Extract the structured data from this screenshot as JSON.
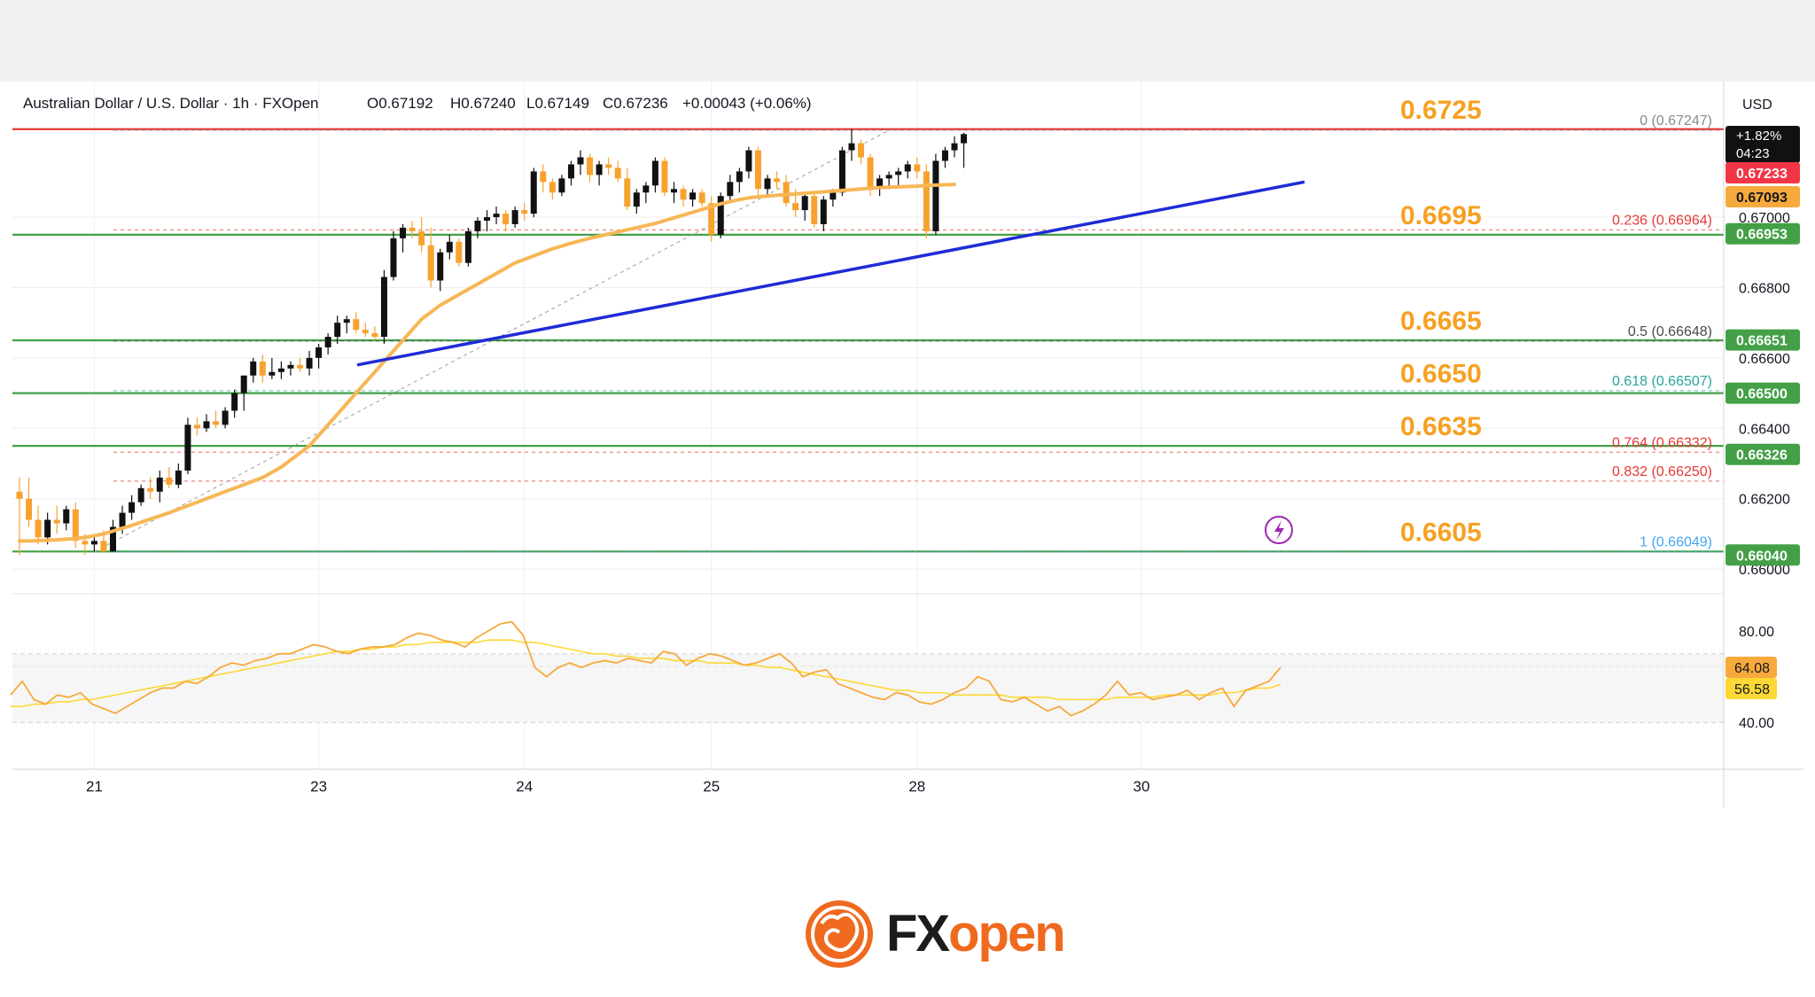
{
  "chart_data": {
    "type": "candlestick",
    "header": {
      "symbol": "Australian Dollar / U.S. Dollar · 1h · FXOpen",
      "open": "O0.67192",
      "high": "H0.67240",
      "low": "L0.67149",
      "close": "C0.67236",
      "change": "+0.00043 (+0.06%)"
    },
    "currency": "USD",
    "price_axis": {
      "ylim": [
        0.6595,
        0.6733
      ],
      "ticks": [
        {
          "value": 0.668,
          "label": "0.66800"
        },
        {
          "value": 0.666,
          "label": "0.66600"
        },
        {
          "value": 0.664,
          "label": "0.66400"
        },
        {
          "value": 0.662,
          "label": "0.66200"
        },
        {
          "value": 0.66,
          "label": "0.66000"
        },
        {
          "value": 0.67,
          "label": "0.67000"
        }
      ]
    },
    "price_tags": [
      {
        "value": 0.67236,
        "label": "+1.82%",
        "color": "#111111",
        "countdown": "04:23"
      },
      {
        "value": 0.67233,
        "label": "0.67233",
        "color": "#f23645"
      },
      {
        "value": 0.67093,
        "label": "0.67093",
        "color": "#f7a93b"
      },
      {
        "value": 0.66953,
        "label": "0.66953",
        "color": "#43a047"
      },
      {
        "value": 0.66651,
        "label": "0.66651",
        "color": "#43a047"
      },
      {
        "value": 0.665,
        "label": "0.66500",
        "color": "#43a047"
      },
      {
        "value": 0.66326,
        "label": "0.66326",
        "color": "#43a047"
      },
      {
        "value": 0.6604,
        "label": "0.66040",
        "color": "#43a047"
      }
    ],
    "levels": [
      {
        "value": 0.6725,
        "label": "0.6725",
        "color": "#e53935"
      },
      {
        "value": 0.6695,
        "label": "0.6695",
        "color": "#43a047"
      },
      {
        "value": 0.6665,
        "label": "0.6665",
        "color": "#43a047"
      },
      {
        "value": 0.665,
        "label": "0.6650",
        "color": "#43a047"
      },
      {
        "value": 0.6635,
        "label": "0.6635",
        "color": "#43a047"
      },
      {
        "value": 0.6605,
        "label": "0.6605",
        "color": "#43a047"
      }
    ],
    "fib_levels": [
      {
        "value": 0.67247,
        "label": "0 (0.67247)",
        "color": "#8a8a8a"
      },
      {
        "value": 0.66964,
        "label": "0.236 (0.66964)",
        "color": "#e53935"
      },
      {
        "value": 0.66648,
        "label": "0.5 (0.66648)",
        "color": "#4a4a4a"
      },
      {
        "value": 0.66507,
        "label": "0.618 (0.66507)",
        "color": "#26a69a"
      },
      {
        "value": 0.66332,
        "label": "0.764 (0.66332)",
        "color": "#e53935"
      },
      {
        "value": 0.6625,
        "label": "0.832 (0.66250)",
        "color": "#e53935"
      },
      {
        "value": 0.66049,
        "label": "1 (0.66049)",
        "color": "#42a5f5"
      }
    ],
    "x_ticks": [
      {
        "index": 8,
        "label": "21"
      },
      {
        "index": 32,
        "label": "23"
      },
      {
        "index": 54,
        "label": "24"
      },
      {
        "index": 74,
        "label": "25"
      },
      {
        "index": 96,
        "label": "28"
      },
      {
        "index": 120,
        "label": "30"
      }
    ],
    "ohlc": [
      [
        0.6622,
        0.6626,
        0.6604,
        0.662
      ],
      [
        0.662,
        0.6626,
        0.6612,
        0.6614
      ],
      [
        0.6614,
        0.6618,
        0.6607,
        0.6609
      ],
      [
        0.6609,
        0.6616,
        0.6607,
        0.6614
      ],
      [
        0.6614,
        0.6618,
        0.661,
        0.6613
      ],
      [
        0.6613,
        0.6618,
        0.6611,
        0.6617
      ],
      [
        0.6617,
        0.6619,
        0.6606,
        0.6608
      ],
      [
        0.6608,
        0.661,
        0.6604,
        0.6607
      ],
      [
        0.6607,
        0.6609,
        0.6605,
        0.6608
      ],
      [
        0.6608,
        0.6611,
        0.6605,
        0.6605
      ],
      [
        0.6605,
        0.6614,
        0.6605,
        0.6612
      ],
      [
        0.6612,
        0.6618,
        0.661,
        0.6616
      ],
      [
        0.6616,
        0.6621,
        0.6614,
        0.6619
      ],
      [
        0.6619,
        0.6624,
        0.6618,
        0.6623
      ],
      [
        0.6623,
        0.6626,
        0.662,
        0.6622
      ],
      [
        0.6622,
        0.6628,
        0.6619,
        0.6626
      ],
      [
        0.6626,
        0.6629,
        0.6623,
        0.6624
      ],
      [
        0.6624,
        0.663,
        0.6623,
        0.6628
      ],
      [
        0.6628,
        0.6643,
        0.6627,
        0.6641
      ],
      [
        0.6641,
        0.6643,
        0.6638,
        0.664
      ],
      [
        0.664,
        0.6644,
        0.6639,
        0.6642
      ],
      [
        0.6642,
        0.6645,
        0.664,
        0.6641
      ],
      [
        0.6641,
        0.6646,
        0.664,
        0.6645
      ],
      [
        0.6645,
        0.6651,
        0.6643,
        0.665
      ],
      [
        0.665,
        0.6655,
        0.6645,
        0.6655
      ],
      [
        0.6655,
        0.666,
        0.6653,
        0.6659
      ],
      [
        0.6659,
        0.6661,
        0.6653,
        0.6655
      ],
      [
        0.6655,
        0.666,
        0.6654,
        0.6656
      ],
      [
        0.6656,
        0.6659,
        0.6654,
        0.6657
      ],
      [
        0.6657,
        0.6659,
        0.6655,
        0.6658
      ],
      [
        0.6658,
        0.666,
        0.6656,
        0.6657
      ],
      [
        0.6657,
        0.6662,
        0.6655,
        0.666
      ],
      [
        0.666,
        0.6664,
        0.6657,
        0.6663
      ],
      [
        0.6663,
        0.6667,
        0.6661,
        0.6666
      ],
      [
        0.6666,
        0.6672,
        0.6664,
        0.667
      ],
      [
        0.667,
        0.6672,
        0.6667,
        0.6671
      ],
      [
        0.6671,
        0.6673,
        0.6667,
        0.6668
      ],
      [
        0.6668,
        0.667,
        0.6666,
        0.6667
      ],
      [
        0.6667,
        0.6669,
        0.6665,
        0.6666
      ],
      [
        0.6666,
        0.6685,
        0.6664,
        0.6683
      ],
      [
        0.6683,
        0.6696,
        0.6682,
        0.6694
      ],
      [
        0.6694,
        0.6698,
        0.669,
        0.6697
      ],
      [
        0.6697,
        0.6699,
        0.6694,
        0.6696
      ],
      [
        0.6696,
        0.67,
        0.669,
        0.6692
      ],
      [
        0.6692,
        0.6697,
        0.668,
        0.6682
      ],
      [
        0.6682,
        0.6691,
        0.6679,
        0.669
      ],
      [
        0.669,
        0.6695,
        0.6688,
        0.6693
      ],
      [
        0.6693,
        0.6694,
        0.6686,
        0.6687
      ],
      [
        0.6687,
        0.6697,
        0.6686,
        0.6696
      ],
      [
        0.6696,
        0.67,
        0.6694,
        0.6699
      ],
      [
        0.6699,
        0.6702,
        0.6696,
        0.67
      ],
      [
        0.67,
        0.6703,
        0.6698,
        0.6701
      ],
      [
        0.6701,
        0.6702,
        0.6696,
        0.6698
      ],
      [
        0.6698,
        0.6703,
        0.6697,
        0.6702
      ],
      [
        0.6702,
        0.6704,
        0.6699,
        0.6701
      ],
      [
        0.6701,
        0.6714,
        0.67,
        0.6713
      ],
      [
        0.6713,
        0.6715,
        0.6707,
        0.671
      ],
      [
        0.671,
        0.6711,
        0.6705,
        0.6707
      ],
      [
        0.6707,
        0.6712,
        0.6706,
        0.6711
      ],
      [
        0.6711,
        0.6716,
        0.6709,
        0.6715
      ],
      [
        0.6715,
        0.6719,
        0.6712,
        0.6717
      ],
      [
        0.6717,
        0.6718,
        0.671,
        0.6712
      ],
      [
        0.6712,
        0.6716,
        0.6709,
        0.6715
      ],
      [
        0.6715,
        0.6717,
        0.6712,
        0.6714
      ],
      [
        0.6714,
        0.6716,
        0.671,
        0.6711
      ],
      [
        0.6711,
        0.6714,
        0.6702,
        0.6703
      ],
      [
        0.6703,
        0.6708,
        0.6701,
        0.6707
      ],
      [
        0.6707,
        0.671,
        0.6704,
        0.6709
      ],
      [
        0.6709,
        0.6717,
        0.6707,
        0.6716
      ],
      [
        0.6716,
        0.6717,
        0.6706,
        0.6707
      ],
      [
        0.6707,
        0.671,
        0.6704,
        0.6708
      ],
      [
        0.6708,
        0.6709,
        0.6703,
        0.6705
      ],
      [
        0.6705,
        0.6708,
        0.6703,
        0.6707
      ],
      [
        0.6707,
        0.6708,
        0.6703,
        0.6704
      ],
      [
        0.6704,
        0.6706,
        0.6693,
        0.6695
      ],
      [
        0.6695,
        0.6707,
        0.6694,
        0.6706
      ],
      [
        0.6706,
        0.6712,
        0.6704,
        0.671
      ],
      [
        0.671,
        0.6714,
        0.6707,
        0.6713
      ],
      [
        0.6713,
        0.672,
        0.6711,
        0.6719
      ],
      [
        0.6719,
        0.672,
        0.6706,
        0.6708
      ],
      [
        0.6708,
        0.6712,
        0.6706,
        0.6711
      ],
      [
        0.6711,
        0.6713,
        0.6708,
        0.671
      ],
      [
        0.671,
        0.6712,
        0.6703,
        0.6704
      ],
      [
        0.6704,
        0.6708,
        0.67,
        0.6702
      ],
      [
        0.6702,
        0.6707,
        0.6699,
        0.6706
      ],
      [
        0.6706,
        0.6707,
        0.6697,
        0.6698
      ],
      [
        0.6698,
        0.6706,
        0.6696,
        0.6705
      ],
      [
        0.6705,
        0.6708,
        0.6703,
        0.6707
      ],
      [
        0.6707,
        0.672,
        0.6706,
        0.6719
      ],
      [
        0.6719,
        0.6725,
        0.6716,
        0.6721
      ],
      [
        0.6721,
        0.6722,
        0.6715,
        0.6717
      ],
      [
        0.6717,
        0.6718,
        0.6706,
        0.6708
      ],
      [
        0.6708,
        0.6712,
        0.6706,
        0.6711
      ],
      [
        0.6711,
        0.6713,
        0.6708,
        0.6712
      ],
      [
        0.6712,
        0.6714,
        0.6709,
        0.6713
      ],
      [
        0.6713,
        0.6716,
        0.6711,
        0.6715
      ],
      [
        0.6715,
        0.6717,
        0.6711,
        0.6713
      ],
      [
        0.6713,
        0.6715,
        0.6694,
        0.6696
      ],
      [
        0.6696,
        0.6718,
        0.6695,
        0.6716
      ],
      [
        0.6716,
        0.672,
        0.6714,
        0.6719
      ],
      [
        0.6719,
        0.6723,
        0.6717,
        0.6721
      ],
      [
        0.6721,
        0.6724,
        0.6714,
        0.67236
      ]
    ],
    "ma": [
      0.6608,
      0.6608,
      0.66081,
      0.66082,
      0.66083,
      0.66085,
      0.66087,
      0.6609,
      0.66095,
      0.661,
      0.66108,
      0.66116,
      0.66124,
      0.66133,
      0.66142,
      0.66151,
      0.6616,
      0.6617,
      0.6618,
      0.6619,
      0.662,
      0.6621,
      0.6622,
      0.6623,
      0.6624,
      0.6625,
      0.6626,
      0.66275,
      0.6629,
      0.6631,
      0.6633,
      0.6635,
      0.6638,
      0.6641,
      0.6644,
      0.6647,
      0.665,
      0.6653,
      0.6656,
      0.6659,
      0.6662,
      0.6665,
      0.6668,
      0.6671,
      0.6673,
      0.6675,
      0.66765,
      0.6678,
      0.66795,
      0.6681,
      0.66825,
      0.6684,
      0.66855,
      0.6687,
      0.6688,
      0.6689,
      0.669,
      0.6691,
      0.66918,
      0.66926,
      0.66933,
      0.6694,
      0.66946,
      0.66952,
      0.66958,
      0.66964,
      0.6697,
      0.66976,
      0.66982,
      0.6699,
      0.66998,
      0.67006,
      0.67014,
      0.67022,
      0.6703,
      0.67038,
      0.67044,
      0.6705,
      0.67055,
      0.67058,
      0.6706,
      0.67062,
      0.67064,
      0.67066,
      0.67068,
      0.6707,
      0.67072,
      0.67074,
      0.67076,
      0.67078,
      0.6708,
      0.67082,
      0.67084,
      0.67085,
      0.67086,
      0.67087,
      0.67088,
      0.6709,
      0.67091,
      0.67092,
      0.67093
    ],
    "trendline": {
      "from": [
        39,
        0.6658
      ],
      "to": [
        139,
        0.671
      ],
      "color": "#1e2bd6"
    },
    "rsi": {
      "ylim": [
        25,
        90
      ],
      "ticks": [
        {
          "value": 80,
          "label": "80.00"
        },
        {
          "value": 40,
          "label": "40.00"
        }
      ],
      "band": [
        40,
        70
      ],
      "last": {
        "value": "64.08",
        "color": "#f7a93b"
      },
      "ma_last": {
        "value": "56.58",
        "color": "#fdd835"
      },
      "values": [
        52,
        58,
        50,
        48,
        52,
        51,
        53,
        48,
        46,
        44,
        47,
        50,
        53,
        55,
        55,
        58,
        57,
        60,
        64,
        66,
        65,
        67,
        68,
        70,
        70,
        72,
        74,
        73,
        71,
        70,
        72,
        73,
        73,
        74,
        77,
        79,
        78,
        76,
        75,
        73,
        77,
        80,
        83,
        84,
        78,
        64,
        60,
        64,
        66,
        64,
        66,
        67,
        66,
        68,
        67,
        66,
        71,
        70,
        65,
        68,
        70,
        69,
        67,
        65,
        66,
        68,
        70,
        66,
        60,
        62,
        63,
        57,
        55,
        53,
        51,
        50,
        53,
        52,
        49,
        48,
        50,
        53,
        55,
        60,
        58,
        50,
        49,
        51,
        48,
        45,
        47,
        43,
        45,
        48,
        52,
        58,
        52,
        53,
        50,
        51,
        52,
        54,
        50,
        53,
        55,
        47,
        54,
        56,
        58,
        64.08
      ],
      "ma_values": [
        47,
        47,
        48,
        48,
        49,
        49,
        50,
        50,
        51,
        52,
        53,
        54,
        55,
        56,
        57,
        58,
        59,
        60,
        61,
        62,
        63,
        64,
        65,
        66,
        67,
        68,
        69,
        70,
        71,
        71,
        72,
        72,
        73,
        73,
        74,
        74,
        75,
        75,
        75,
        75,
        75,
        76,
        76,
        76,
        75,
        75,
        74,
        73,
        72,
        71,
        70,
        70,
        69,
        69,
        68,
        68,
        68,
        67,
        67,
        67,
        66,
        66,
        66,
        65,
        65,
        64,
        64,
        63,
        62,
        61,
        60,
        59,
        58,
        57,
        56,
        55,
        54,
        54,
        53,
        53,
        53,
        52,
        52,
        52,
        52,
        52,
        51,
        51,
        51,
        51,
        50,
        50,
        50,
        50,
        50,
        51,
        51,
        51,
        51,
        52,
        52,
        52,
        52,
        52,
        53,
        53,
        54,
        55,
        55,
        56.58
      ]
    }
  },
  "logo": {
    "fx": "FX",
    "open": "open"
  }
}
